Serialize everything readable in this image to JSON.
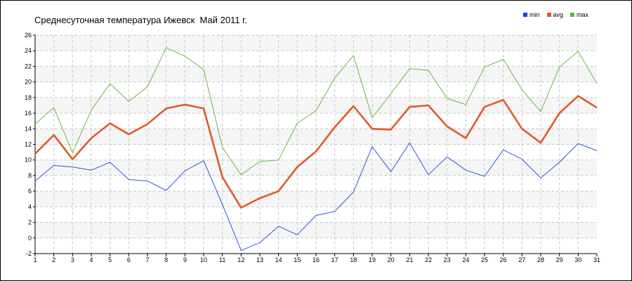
{
  "chart_data": {
    "type": "line",
    "title": "Среднесуточная температура Ижевск  Май 2011 г.",
    "xlabel": "",
    "ylabel": "",
    "categories": [
      "1",
      "2",
      "3",
      "4",
      "5",
      "6",
      "7",
      "8",
      "9",
      "10",
      "11",
      "12",
      "13",
      "14",
      "15",
      "16",
      "17",
      "18",
      "19",
      "20",
      "21",
      "22",
      "23",
      "24",
      "25",
      "26",
      "27",
      "28",
      "29",
      "30",
      "31"
    ],
    "ylim": [
      -2,
      26
    ],
    "yticks": [
      "-2",
      "0",
      "2",
      "4",
      "6",
      "8",
      "10",
      "12",
      "14",
      "16",
      "18",
      "20",
      "22",
      "24",
      "26"
    ],
    "grid": true,
    "legend_position": "top-right",
    "series": [
      {
        "name": "min",
        "color": "#3355dd",
        "values": [
          7.3,
          9.3,
          9.1,
          8.7,
          9.7,
          7.5,
          7.3,
          6.1,
          8.6,
          9.9,
          4.3,
          -1.6,
          -0.6,
          1.5,
          0.4,
          2.9,
          3.4,
          5.9,
          11.7,
          8.5,
          12.2,
          8.1,
          10.4,
          8.7,
          7.9,
          11.3,
          10.1,
          7.7,
          9.7,
          12.1,
          11.2
        ]
      },
      {
        "name": "avg",
        "color": "#e05a28",
        "values": [
          10.8,
          13.2,
          10.1,
          12.8,
          14.7,
          13.3,
          14.6,
          16.6,
          17.1,
          16.6,
          7.8,
          3.9,
          5.1,
          6.0,
          9.1,
          11.1,
          14.2,
          16.9,
          14.0,
          13.9,
          16.8,
          17.0,
          14.3,
          12.8,
          16.8,
          17.7,
          14.0,
          12.2,
          16.0,
          18.2,
          16.7
        ]
      },
      {
        "name": "max",
        "color": "#66bb44",
        "values": [
          14.6,
          16.7,
          10.9,
          16.4,
          19.8,
          17.5,
          19.4,
          24.4,
          23.3,
          21.6,
          11.6,
          8.1,
          9.8,
          10.0,
          14.7,
          16.3,
          20.5,
          23.4,
          15.4,
          18.5,
          21.7,
          21.5,
          17.9,
          17.1,
          21.9,
          22.9,
          19.0,
          16.2,
          21.9,
          23.9,
          19.8
        ]
      }
    ]
  }
}
